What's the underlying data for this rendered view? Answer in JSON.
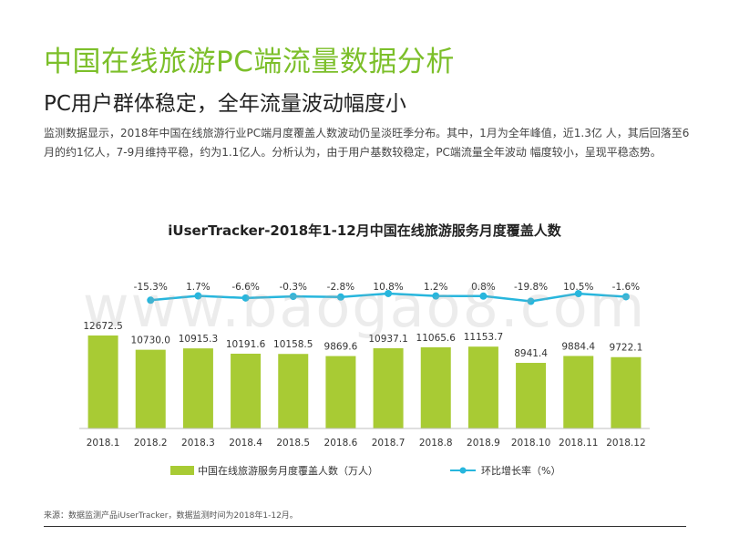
{
  "header": {
    "title": "中国在线旅游PC端流量数据分析",
    "subtitle": "PC用户群体稳定，全年流量波动幅度小",
    "description": "监测数据显示，2018年中国在线旅游行业PC端月度覆盖人数波动仍呈淡旺季分布。其中，1月为全年峰值，近1.3亿 人，其后回落至6月的约1亿人，7-9月维持平稳，约为1.1亿人。分析认为，由于用户基数较稳定，PC端流量全年波动 幅度较小，呈现平稳态势。"
  },
  "watermark": "www.baogao8.com",
  "source": "来源：数据监测产品iUserTracker，数据监测时间为2018年1-12月。",
  "colors": {
    "bar": "#a8cb34",
    "line": "#27b6dd",
    "title": "#7cbf2a"
  },
  "chart_data": {
    "type": "bar",
    "title": "iUserTracker-2018年1-12月中国在线旅游服务月度覆盖人数",
    "categories": [
      "2018.1",
      "2018.2",
      "2018.3",
      "2018.4",
      "2018.5",
      "2018.6",
      "2018.7",
      "2018.8",
      "2018.9",
      "2018.10",
      "2018.11",
      "2018.12"
    ],
    "series": [
      {
        "name": "中国在线旅游服务月度覆盖人数（万人）",
        "type": "bar",
        "values": [
          12672.5,
          10730.0,
          10915.3,
          10191.6,
          10158.5,
          9869.6,
          10937.1,
          11065.6,
          11153.7,
          8941.4,
          9884.4,
          9722.1
        ],
        "labels": [
          "12672.5",
          "10730.0",
          "10915.3",
          "10191.6",
          "10158.5",
          "9869.6",
          "10937.1",
          "11065.6",
          "11153.7",
          "8941.4",
          "9884.4",
          "9722.1"
        ]
      },
      {
        "name": "环比增长率（%）",
        "type": "line",
        "values": [
          null,
          -15.3,
          1.7,
          -6.6,
          -0.3,
          -2.8,
          10.8,
          1.2,
          0.8,
          -19.8,
          10.5,
          -1.6
        ],
        "labels": [
          "",
          "-15.3%",
          "1.7%",
          "-6.6%",
          "-0.3%",
          "-2.8%",
          "10.8%",
          "1.2%",
          "0.8%",
          "-19.8%",
          "10.5%",
          "-1.6%"
        ]
      }
    ],
    "legend": "bottom"
  }
}
